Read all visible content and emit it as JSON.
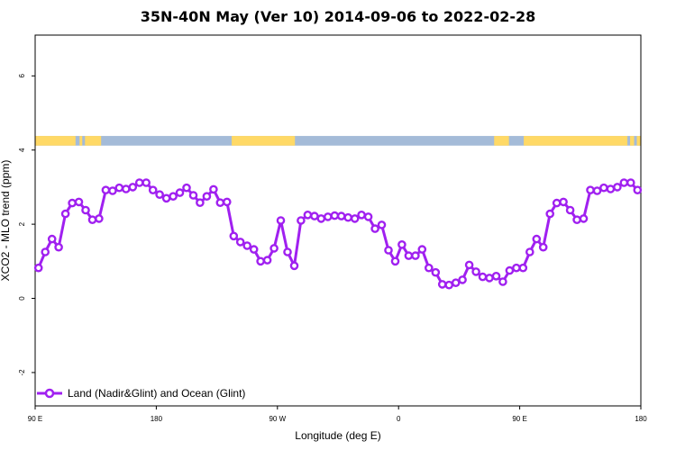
{
  "chart_data": {
    "type": "line",
    "title": "35N-40N May (Ver 10)   2014-09-06 to 2022-02-28",
    "xlabel": "Longitude (deg E)",
    "ylabel": "XCO2 - MLO trend (ppm)",
    "xlim": [
      90,
      540
    ],
    "ylim": [
      -2.9,
      7.1
    ],
    "x_ticks": [
      {
        "value": 90,
        "label": "90 E"
      },
      {
        "value": 180,
        "label": "180"
      },
      {
        "value": 270,
        "label": "90 W"
      },
      {
        "value": 360,
        "label": "0"
      },
      {
        "value": 450,
        "label": "90 E"
      },
      {
        "value": 540,
        "label": "180"
      }
    ],
    "y_ticks": [
      {
        "value": -2,
        "label": "-2"
      },
      {
        "value": 0,
        "label": "0"
      },
      {
        "value": 2,
        "label": "2"
      },
      {
        "value": 4,
        "label": "4"
      },
      {
        "value": 6,
        "label": "6"
      }
    ],
    "grid": false,
    "legend_position": "bottom-left",
    "land_ocean_strip": {
      "y_range": [
        4.12,
        4.38
      ],
      "land_color": "#ffd966",
      "ocean_color": "#a4bbd8",
      "land_segments": [
        [
          90,
          120
        ],
        [
          123,
          125
        ],
        [
          127,
          139
        ],
        [
          236,
          283
        ],
        [
          431,
          442
        ],
        [
          453,
          530
        ],
        [
          532,
          535
        ],
        [
          537,
          545
        ]
      ]
    },
    "series": [
      {
        "name": "Land (Nadir&Glint) and Ocean (Glint)",
        "color": "#a020f0",
        "x": [
          92.5,
          97.5,
          102.5,
          107.5,
          112.5,
          117.5,
          122.5,
          127.5,
          132.5,
          137.5,
          142.5,
          147.5,
          152.5,
          157.5,
          162.5,
          167.5,
          172.5,
          177.5,
          182.5,
          187.5,
          192.5,
          197.5,
          202.5,
          207.5,
          212.5,
          217.5,
          222.5,
          227.5,
          232.5,
          237.5,
          242.5,
          247.5,
          252.5,
          257.5,
          262.5,
          267.5,
          272.5,
          277.5,
          282.5,
          287.5,
          292.5,
          297.5,
          302.5,
          307.5,
          312.5,
          317.5,
          322.5,
          327.5,
          332.5,
          337.5,
          342.5,
          347.5,
          352.5,
          357.5,
          362.5,
          367.5,
          372.5,
          377.5,
          382.5,
          387.5,
          392.5,
          397.5,
          402.5,
          407.5,
          412.5,
          417.5,
          422.5,
          427.5,
          432.5,
          437.5,
          442.5,
          447.5,
          452.5,
          457.5,
          462.5,
          467.5,
          472.5,
          477.5,
          482.5,
          487.5,
          492.5,
          497.5,
          502.5,
          507.5,
          512.5,
          517.5,
          522.5,
          527.5,
          532.5,
          537.5
        ],
        "y": [
          0.82,
          1.25,
          1.6,
          1.38,
          2.28,
          2.57,
          2.6,
          2.38,
          2.12,
          2.15,
          2.92,
          2.9,
          2.98,
          2.95,
          3.0,
          3.12,
          3.12,
          2.92,
          2.8,
          2.7,
          2.75,
          2.85,
          2.98,
          2.78,
          2.58,
          2.75,
          2.94,
          2.58,
          2.6,
          1.68,
          1.52,
          1.42,
          1.32,
          1.0,
          1.03,
          1.35,
          2.1,
          1.25,
          0.88,
          2.1,
          2.25,
          2.22,
          2.15,
          2.2,
          2.23,
          2.22,
          2.18,
          2.15,
          2.25,
          2.2,
          1.88,
          1.98,
          1.3,
          1.0,
          1.45,
          1.15,
          1.15,
          1.32,
          0.82,
          0.7,
          0.38,
          0.36,
          0.42,
          0.5,
          0.9,
          0.72,
          0.58,
          0.55,
          0.6,
          0.45,
          0.75,
          0.82,
          0.82,
          1.25,
          1.6,
          1.38,
          2.28,
          2.57,
          2.6,
          2.38,
          2.12,
          2.15,
          2.92,
          2.9,
          2.98,
          2.95,
          3.0,
          3.12,
          3.12,
          2.92
        ]
      }
    ]
  }
}
